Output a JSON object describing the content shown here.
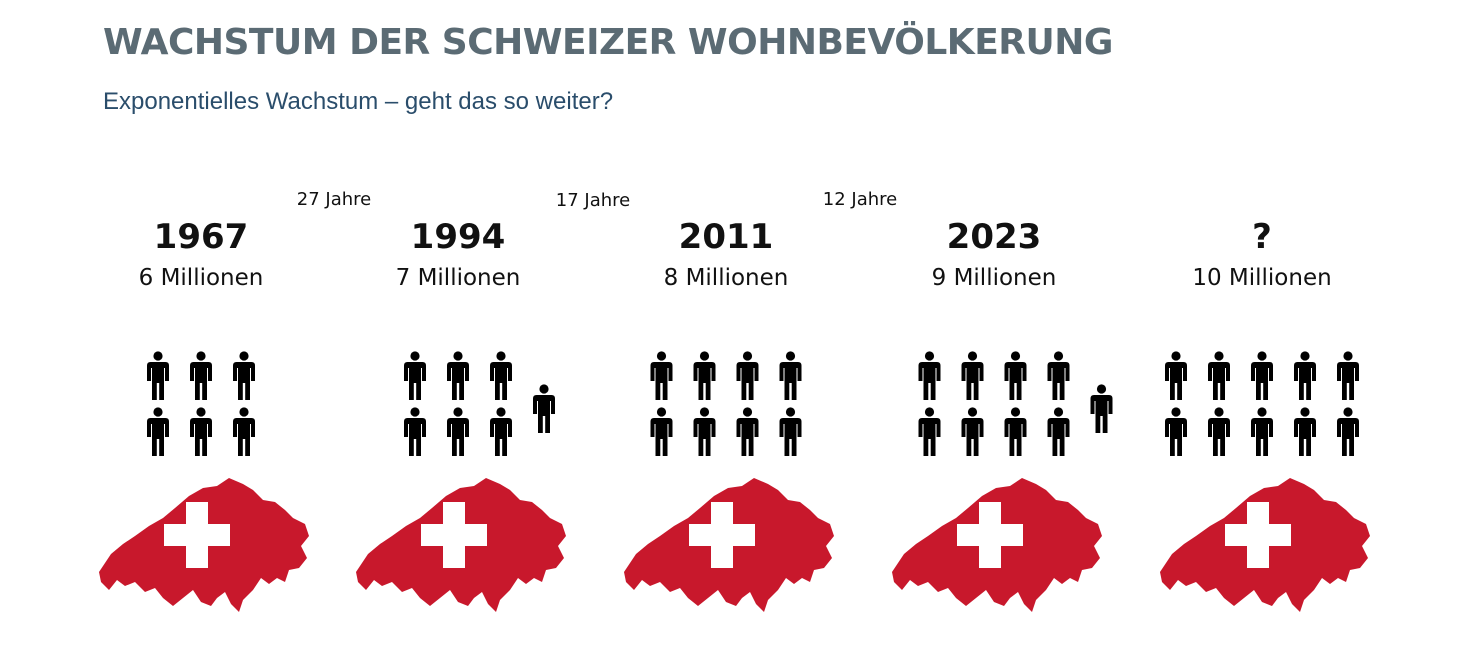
{
  "title": "WACHSTUM DER SCHWEIZER WOHNBEVÖLKERUNG",
  "subtitle": "Exponentielles Wachstum – geht das so weiter?",
  "colors": {
    "title": "#5b6b74",
    "subtitle": "#2a4d6b",
    "flag_red": "#c8182c",
    "cross": "#ffffff",
    "person": "#000000"
  },
  "icons": {
    "person": "person-icon",
    "map": "swiss-map-flag-icon"
  },
  "chart_data": {
    "type": "pictogram",
    "title": "WACHSTUM DER SCHWEIZER WOHNBEVÖLKERUNG",
    "subtitle": "Exponentielles Wachstum – geht das so weiter?",
    "unit": "Millionen",
    "categories": [
      "1967",
      "1994",
      "2011",
      "2023",
      "?"
    ],
    "population_labels": [
      "6 Millionen",
      "7 Millionen",
      "8 Millionen",
      "9 Millionen",
      "10 Millionen"
    ],
    "values": [
      6,
      7,
      8,
      9,
      10
    ],
    "intervals": [
      {
        "label": "27 Jahre",
        "from": "1967",
        "to": "1994"
      },
      {
        "label": "17 Jahre",
        "from": "1994",
        "to": "2011"
      },
      {
        "label": "12 Jahre",
        "from": "2011",
        "to": "2023"
      }
    ]
  }
}
